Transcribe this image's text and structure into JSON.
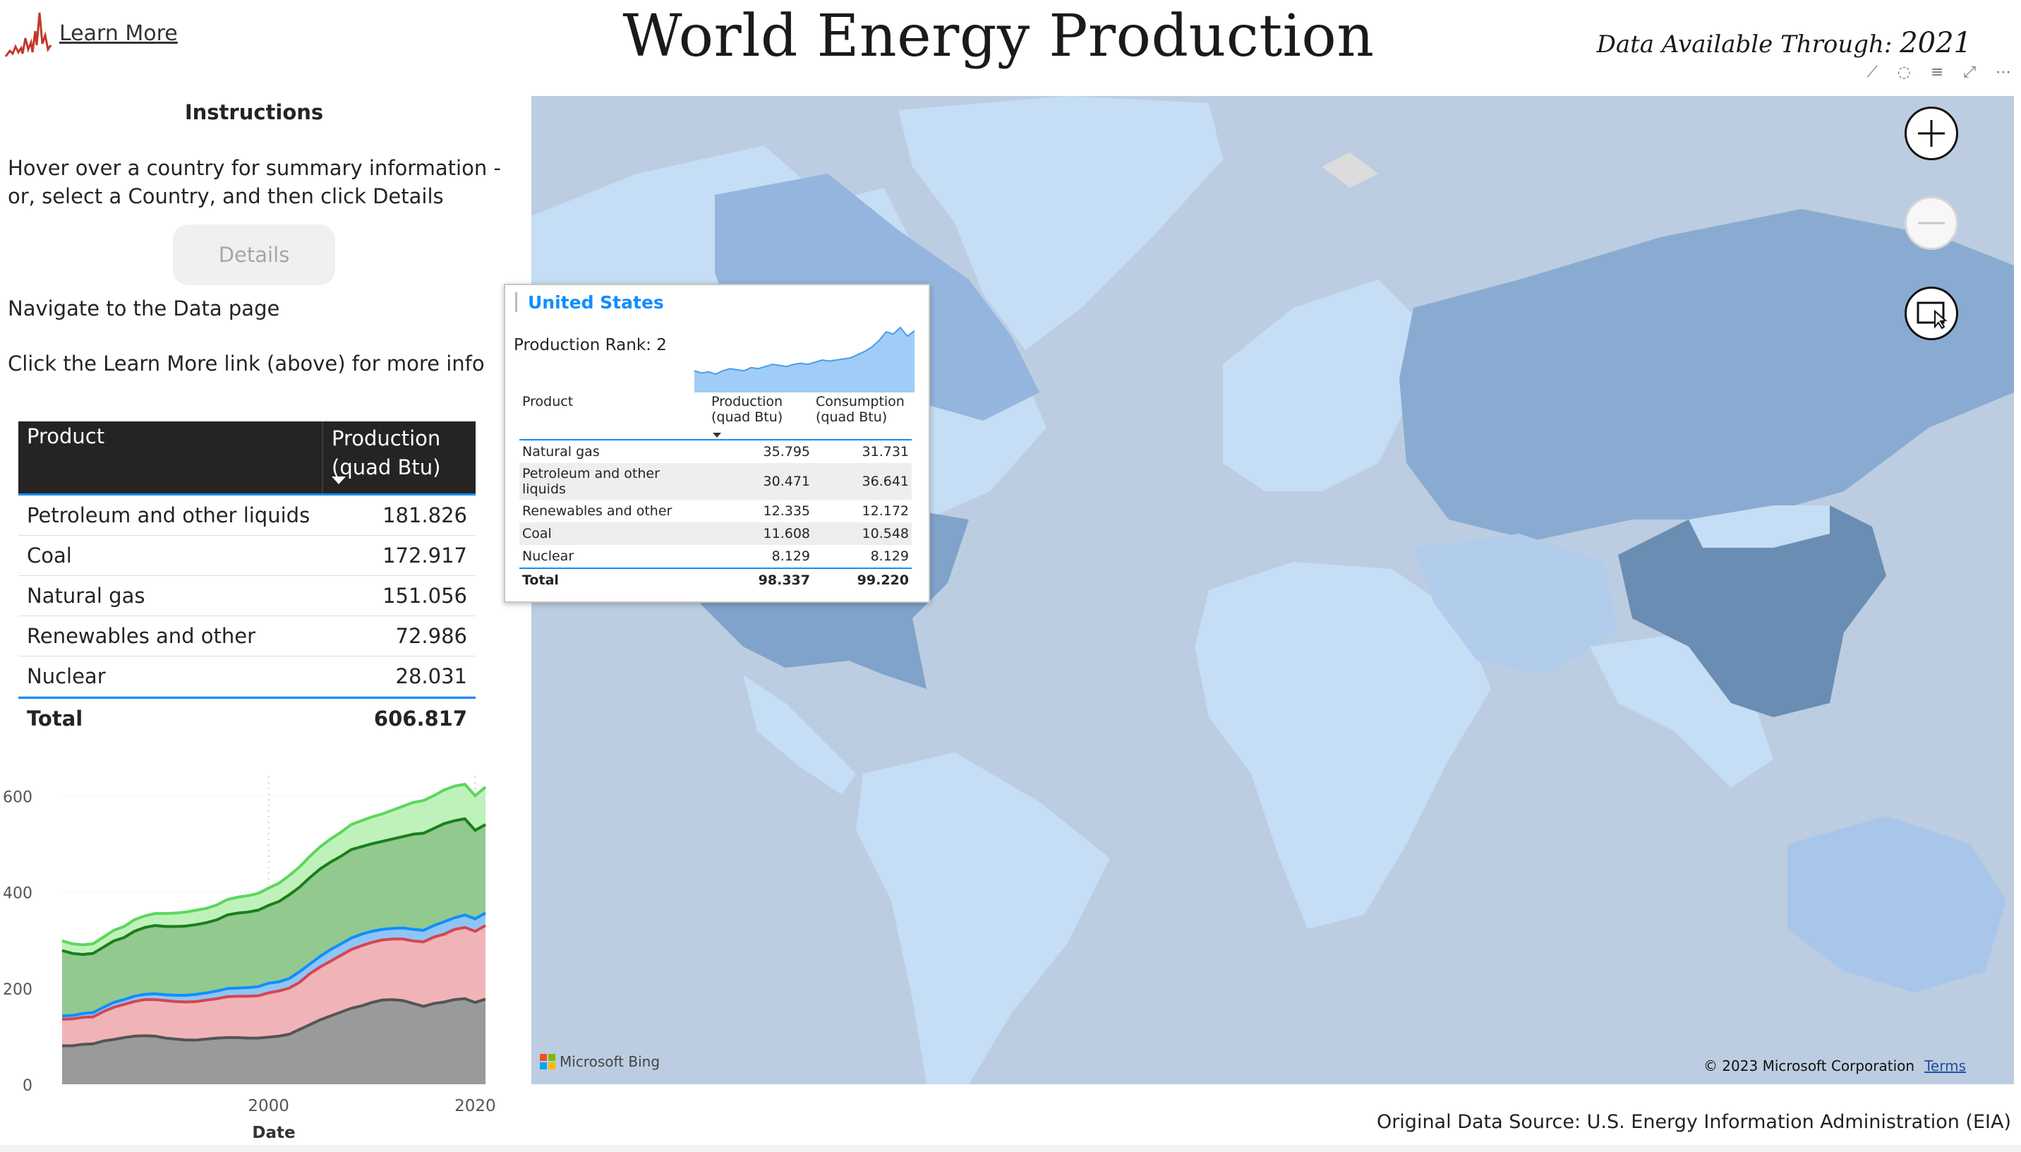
{
  "header": {
    "learn_more": "Learn More",
    "title": "World Energy Production",
    "available_prefix": "Data Available Through:",
    "available_year": "2021"
  },
  "instructions": {
    "title": "Instructions",
    "line1": "Hover over a country for summary information - or, select a Country, and then click Details",
    "details_button": "Details",
    "navigate": "Navigate to the Data page",
    "learn": "Click the Learn More link (above) for more info"
  },
  "product_table": {
    "col1": "Product",
    "col2": "Production (quad Btu)",
    "rows": [
      {
        "product": "Petroleum and other liquids",
        "value": "181.826"
      },
      {
        "product": "Coal",
        "value": "172.917"
      },
      {
        "product": "Natural gas",
        "value": "151.056"
      },
      {
        "product": "Renewables and other",
        "value": "72.986"
      },
      {
        "product": "Nuclear",
        "value": "28.031"
      }
    ],
    "total_label": "Total",
    "total_value": "606.817"
  },
  "chart_data": {
    "type": "area",
    "stacked": true,
    "xlabel": "Date",
    "x_ticks": [
      "2000",
      "2020"
    ],
    "y_ticks": [
      "0",
      "200",
      "400",
      "600"
    ],
    "ylim": [
      0,
      640
    ],
    "x": [
      1980,
      1981,
      1982,
      1983,
      1984,
      1985,
      1986,
      1987,
      1988,
      1989,
      1990,
      1991,
      1992,
      1993,
      1994,
      1995,
      1996,
      1997,
      1998,
      1999,
      2000,
      2001,
      2002,
      2003,
      2004,
      2005,
      2006,
      2007,
      2008,
      2009,
      2010,
      2011,
      2012,
      2013,
      2014,
      2015,
      2016,
      2017,
      2018,
      2019,
      2020,
      2021
    ],
    "series": [
      {
        "color": "#555555",
        "fill": "#9a9a9a",
        "cumulative": [
          80,
          80,
          83,
          84,
          90,
          93,
          97,
          100,
          101,
          100,
          96,
          94,
          92,
          92,
          94,
          96,
          97,
          97,
          96,
          96,
          98,
          100,
          104,
          114,
          124,
          134,
          142,
          150,
          158,
          163,
          170,
          175,
          176,
          174,
          168,
          162,
          168,
          171,
          176,
          178,
          170,
          177
        ]
      },
      {
        "color": "#d64550",
        "fill": "#f0b4b8",
        "cumulative": [
          135,
          136,
          139,
          140,
          151,
          160,
          166,
          172,
          176,
          176,
          174,
          172,
          171,
          172,
          175,
          178,
          182,
          183,
          183,
          184,
          190,
          194,
          200,
          212,
          230,
          244,
          256,
          268,
          280,
          288,
          295,
          300,
          302,
          302,
          298,
          296,
          306,
          312,
          322,
          326,
          318,
          330
        ]
      },
      {
        "color": "#118dff",
        "fill": "#8fc5f5",
        "cumulative": [
          142,
          143,
          147,
          149,
          160,
          170,
          176,
          183,
          187,
          188,
          186,
          185,
          185,
          187,
          190,
          194,
          199,
          200,
          201,
          203,
          210,
          213,
          220,
          234,
          250,
          266,
          280,
          292,
          304,
          312,
          318,
          322,
          324,
          325,
          322,
          320,
          330,
          338,
          346,
          352,
          344,
          356
        ]
      },
      {
        "color": "#1a7f1a",
        "fill": "#92c98f",
        "cumulative": [
          278,
          272,
          270,
          272,
          285,
          298,
          305,
          318,
          326,
          330,
          328,
          328,
          329,
          332,
          336,
          342,
          352,
          356,
          358,
          362,
          372,
          380,
          394,
          410,
          430,
          448,
          462,
          474,
          488,
          494,
          500,
          505,
          510,
          515,
          520,
          522,
          532,
          542,
          548,
          552,
          528,
          540
        ]
      },
      {
        "color": "#5cd65c",
        "fill": "#bff2ba",
        "cumulative": [
          298,
          292,
          290,
          292,
          306,
          320,
          328,
          342,
          350,
          355,
          355,
          356,
          358,
          362,
          366,
          373,
          384,
          389,
          392,
          397,
          408,
          418,
          434,
          452,
          474,
          494,
          510,
          524,
          540,
          548,
          556,
          562,
          570,
          578,
          586,
          590,
          600,
          612,
          620,
          624,
          600,
          618
        ]
      }
    ]
  },
  "map": {
    "bing_label": "Microsoft Bing",
    "copyright": "© 2023 Microsoft Corporation",
    "terms": "Terms"
  },
  "tooltip": {
    "country": "United States",
    "rank": "Production Rank: 2",
    "col1": "Product",
    "col2": "Production (quad Btu)",
    "col3": "Consumption (quad Btu)",
    "rows": [
      {
        "product": "Natural gas",
        "production": "35.795",
        "consumption": "31.731"
      },
      {
        "product": "Petroleum and other liquids",
        "production": "30.471",
        "consumption": "36.641"
      },
      {
        "product": "Renewables and other",
        "production": "12.335",
        "consumption": "12.172"
      },
      {
        "product": "Coal",
        "production": "11.608",
        "consumption": "10.548"
      },
      {
        "product": "Nuclear",
        "production": "8.129",
        "consumption": "8.129"
      }
    ],
    "total_label": "Total",
    "total_production": "98.337",
    "total_consumption": "99.220",
    "sparkline": [
      60,
      58,
      59,
      57,
      60,
      62,
      61,
      60,
      63,
      62,
      64,
      66,
      65,
      64,
      66,
      67,
      66,
      68,
      70,
      69,
      70,
      71,
      72,
      75,
      78,
      82,
      88,
      96,
      94,
      100,
      92,
      97
    ]
  },
  "footer": {
    "source": "Original Data Source: U.S. Energy Information Administration (EIA)"
  }
}
